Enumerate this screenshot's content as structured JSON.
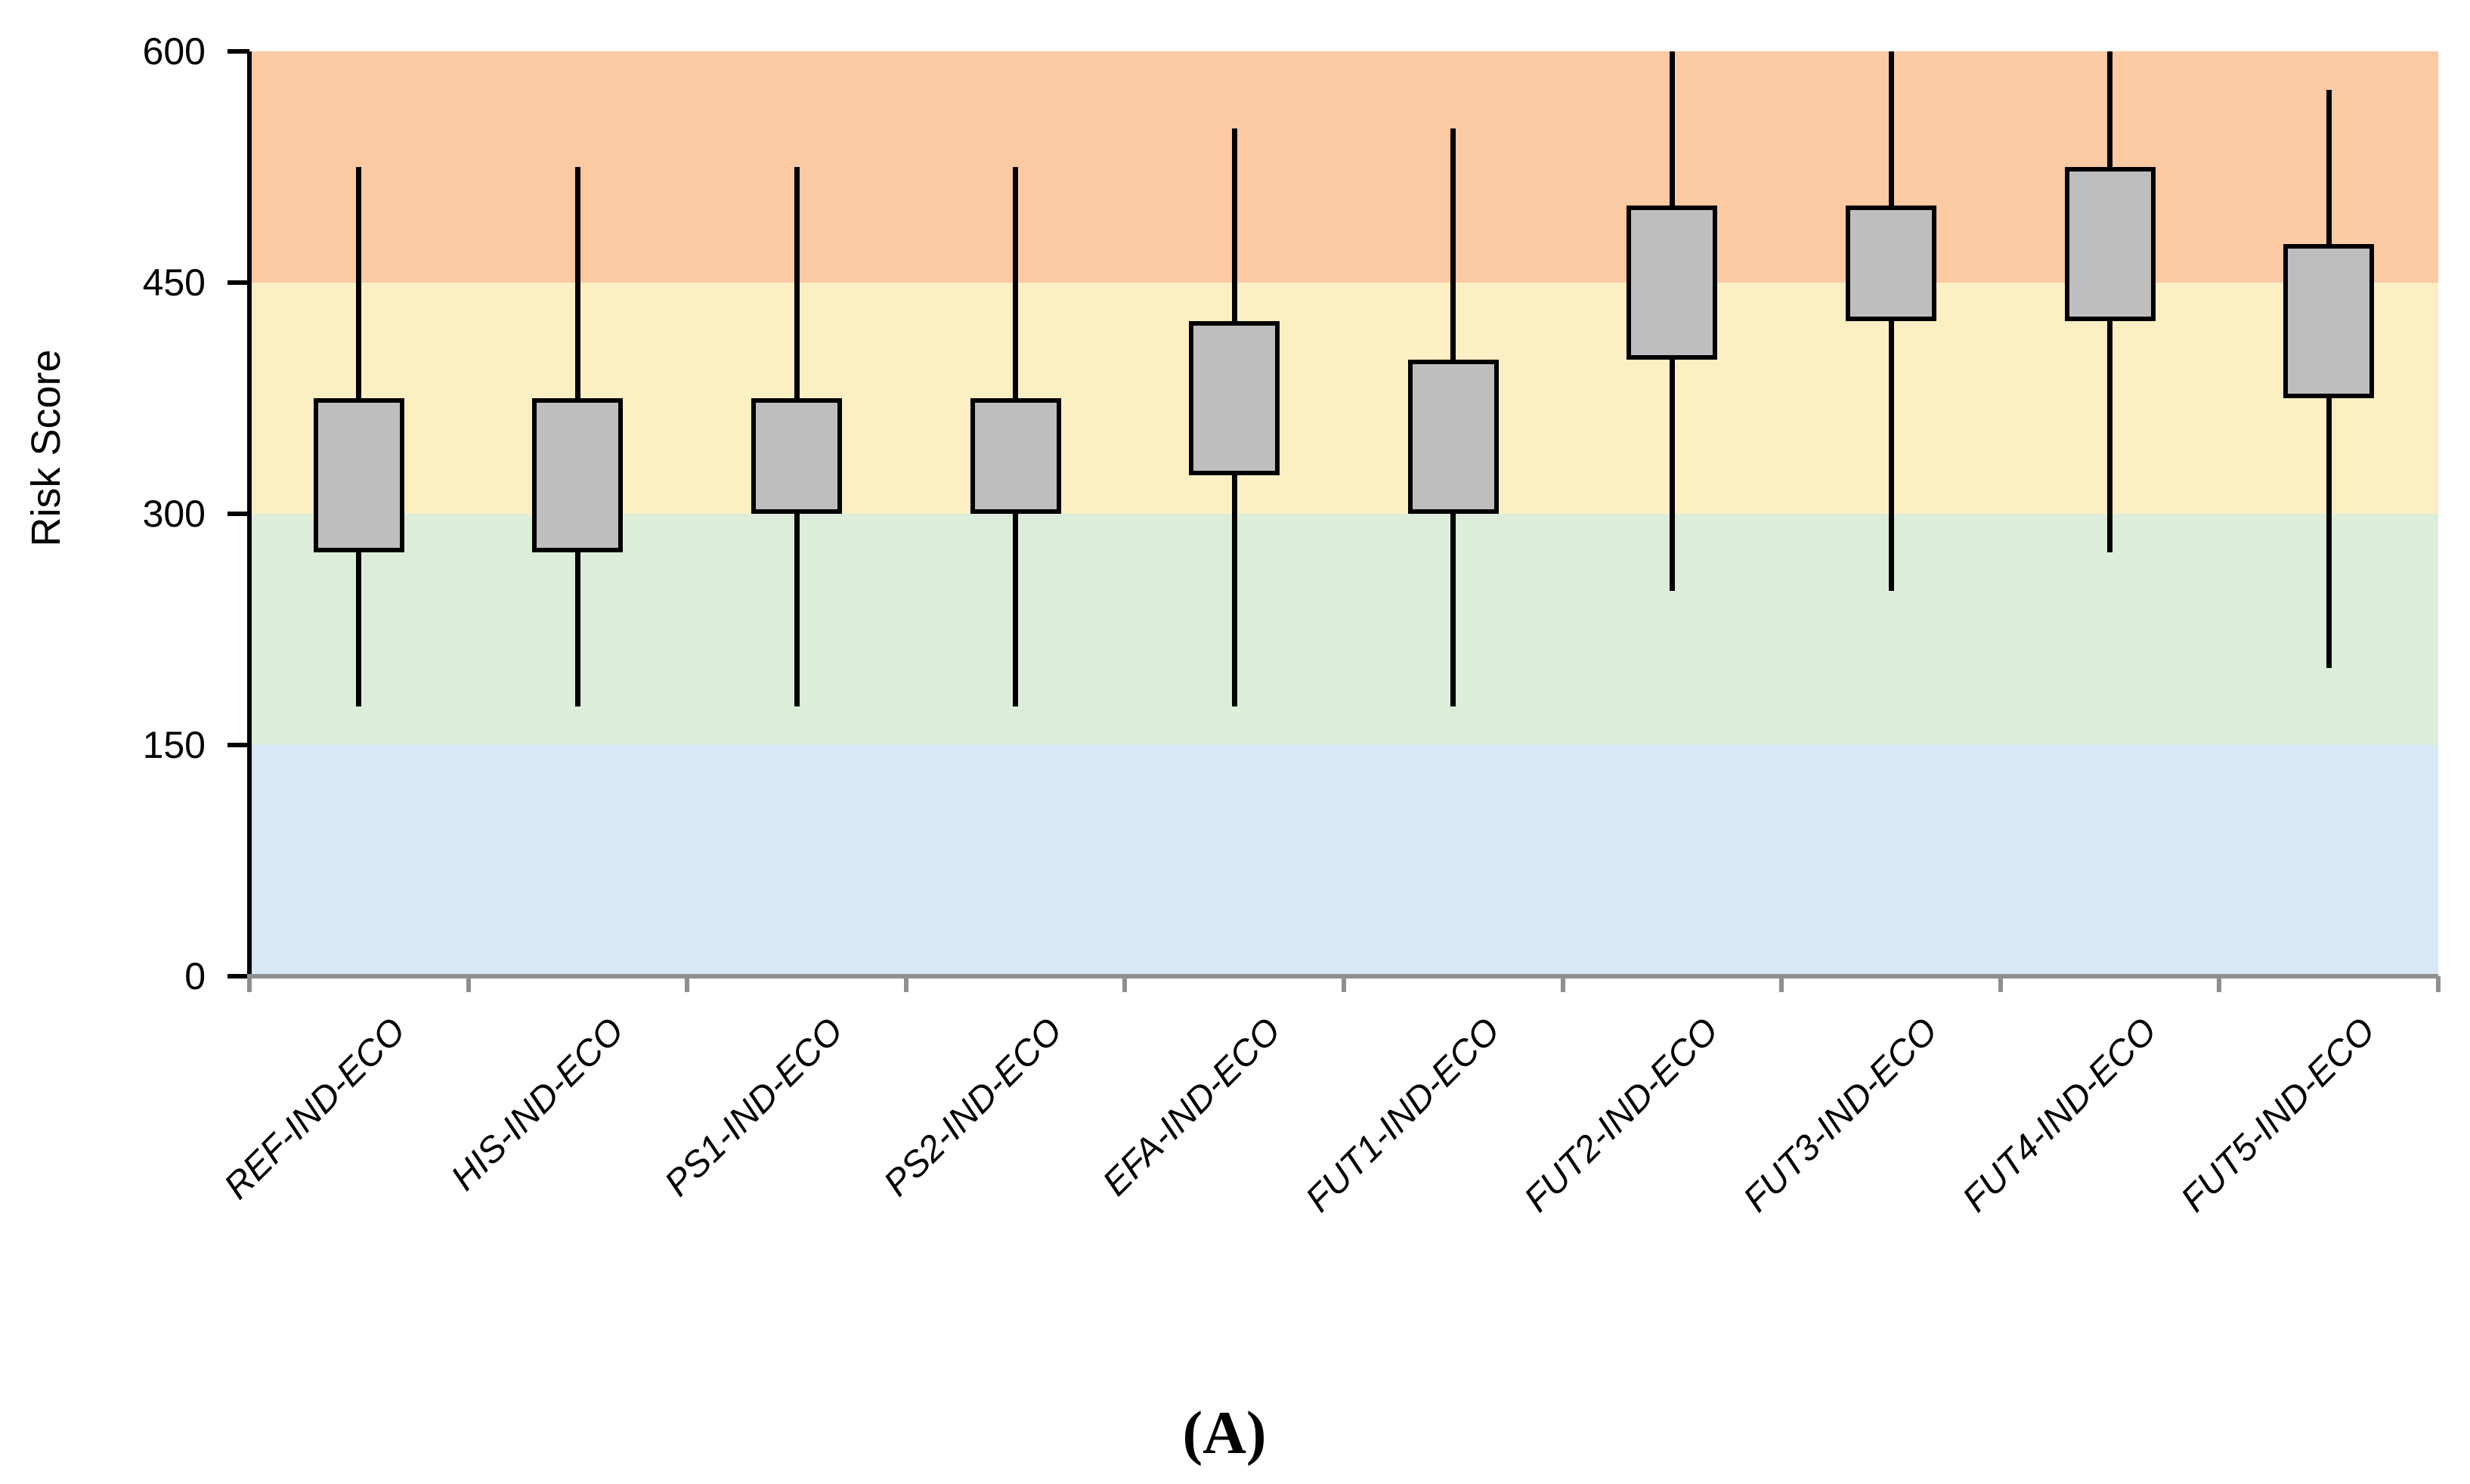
{
  "chart_data": {
    "type": "box",
    "title": "",
    "ylabel": "Risk Score",
    "xlabel": "",
    "caption": "(A)",
    "legend": "none",
    "grid": "off",
    "y_axis": {
      "min": 0,
      "max": 600,
      "ticks": [
        600,
        450,
        300,
        150,
        0
      ]
    },
    "background_bands": [
      {
        "name": "high-risk-band",
        "from": 450,
        "to": 600,
        "color": "#FBC9A2"
      },
      {
        "name": "elevated-risk-band",
        "from": 300,
        "to": 450,
        "color": "#FCEFC4"
      },
      {
        "name": "moderate-risk-band",
        "from": 150,
        "to": 300,
        "color": "#DCEDDA"
      },
      {
        "name": "low-risk-band",
        "from": 0,
        "to": 150,
        "color": "#D7E8F6"
      }
    ],
    "categories": [
      "REF-IND-ECO",
      "HIS-IND-ECO",
      "PS1-IND-ECO",
      "PS2-IND-ECO",
      "EFA-IND-ECO",
      "FUT1-IND-ECO",
      "FUT2-IND-ECO",
      "FUT3-IND-ECO",
      "FUT4-IND-ECO",
      "FUT5-IND-ECO"
    ],
    "series": [
      {
        "name": "Risk Score",
        "boxes": [
          {
            "category": "REF-IND-ECO",
            "whisker_low": 175,
            "q1": 275,
            "q3": 375,
            "whisker_high": 525
          },
          {
            "category": "HIS-IND-ECO",
            "whisker_low": 175,
            "q1": 275,
            "q3": 375,
            "whisker_high": 525
          },
          {
            "category": "PS1-IND-ECO",
            "whisker_low": 175,
            "q1": 300,
            "q3": 375,
            "whisker_high": 525
          },
          {
            "category": "PS2-IND-ECO",
            "whisker_low": 175,
            "q1": 300,
            "q3": 375,
            "whisker_high": 525
          },
          {
            "category": "EFA-IND-ECO",
            "whisker_low": 175,
            "q1": 325,
            "q3": 425,
            "whisker_high": 550
          },
          {
            "category": "FUT1-IND-ECO",
            "whisker_low": 175,
            "q1": 300,
            "q3": 400,
            "whisker_high": 550
          },
          {
            "category": "FUT2-IND-ECO",
            "whisker_low": 250,
            "q1": 400,
            "q3": 500,
            "whisker_high": 600
          },
          {
            "category": "FUT3-IND-ECO",
            "whisker_low": 250,
            "q1": 425,
            "q3": 500,
            "whisker_high": 600
          },
          {
            "category": "FUT4-IND-ECO",
            "whisker_low": 275,
            "q1": 425,
            "q3": 525,
            "whisker_high": 600
          },
          {
            "category": "FUT5-IND-ECO",
            "whisker_low": 200,
            "q1": 375,
            "q3": 475,
            "whisker_high": 575
          }
        ]
      }
    ]
  },
  "colors": {
    "box_fill": "#BEBEBE",
    "box_border": "#000000",
    "whisker": "#000000",
    "y_axis": "#000000",
    "x_baseline": "#8F8F8F",
    "text": "#000000"
  }
}
